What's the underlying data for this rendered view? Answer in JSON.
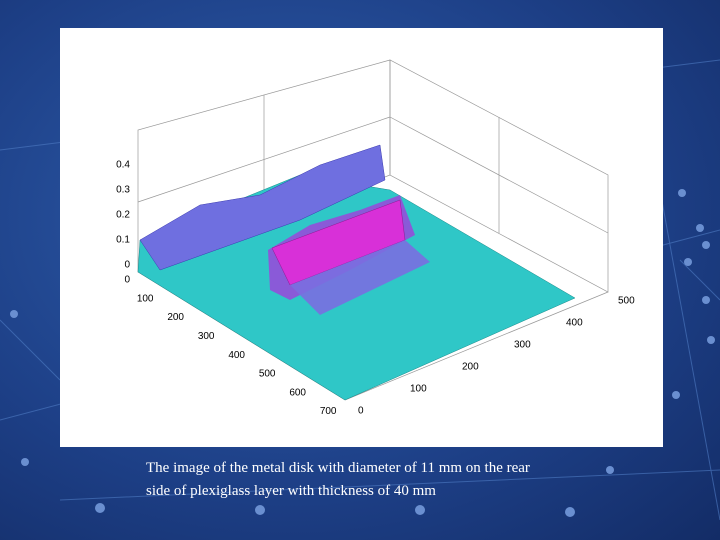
{
  "slide": {
    "plot": {
      "z_ticks": [
        0,
        0.1,
        0.2,
        0.3,
        0.4
      ],
      "x_ticks": [
        0,
        100,
        200,
        300,
        400,
        500,
        600,
        700
      ],
      "y_ticks": [
        0,
        100,
        200,
        300,
        400,
        500
      ]
    },
    "caption_lines": [
      "The image of the metal disk with diameter of 11 mm on the rear",
      "side of plexiglass layer with thickness of 40 mm"
    ]
  }
}
